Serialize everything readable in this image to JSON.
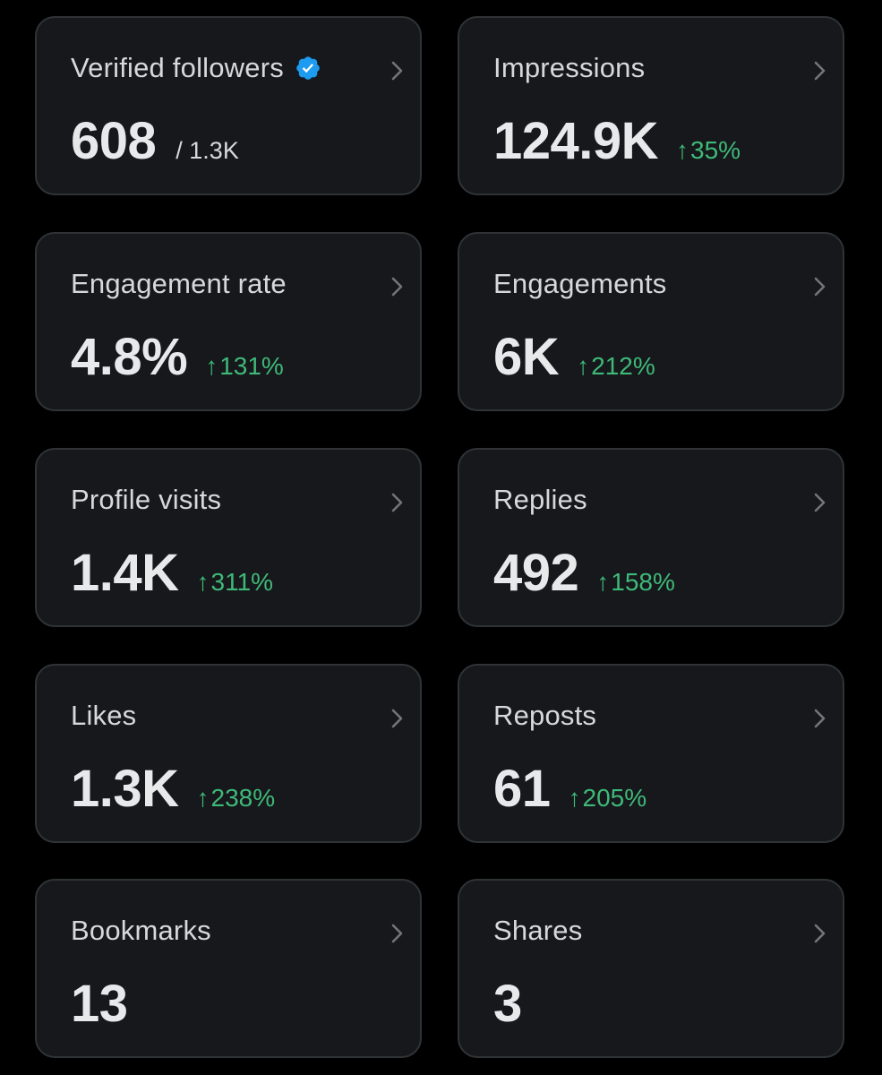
{
  "colors": {
    "background": "#000000",
    "card": "#16181c",
    "card_border": "#2f3336",
    "label": "#d6d9db",
    "value": "#e7e9ea",
    "positive": "#3fb978",
    "verified_badge": "#1d9bf0"
  },
  "cards": [
    {
      "label": "Verified followers",
      "value": "608",
      "suffix": "/ 1.3K",
      "icon": "verified-badge-icon"
    },
    {
      "label": "Impressions",
      "value": "124.9K",
      "delta_arrow": "↑",
      "delta": "35%"
    },
    {
      "label": "Engagement rate",
      "value": "4.8%",
      "delta_arrow": "↑",
      "delta": "131%"
    },
    {
      "label": "Engagements",
      "value": "6K",
      "delta_arrow": "↑",
      "delta": "212%"
    },
    {
      "label": "Profile visits",
      "value": "1.4K",
      "delta_arrow": "↑",
      "delta": "311%"
    },
    {
      "label": "Replies",
      "value": "492",
      "delta_arrow": "↑",
      "delta": "158%"
    },
    {
      "label": "Likes",
      "value": "1.3K",
      "delta_arrow": "↑",
      "delta": "238%"
    },
    {
      "label": "Reposts",
      "value": "61",
      "delta_arrow": "↑",
      "delta": "205%"
    },
    {
      "label": "Bookmarks",
      "value": "13"
    },
    {
      "label": "Shares",
      "value": "3"
    }
  ]
}
